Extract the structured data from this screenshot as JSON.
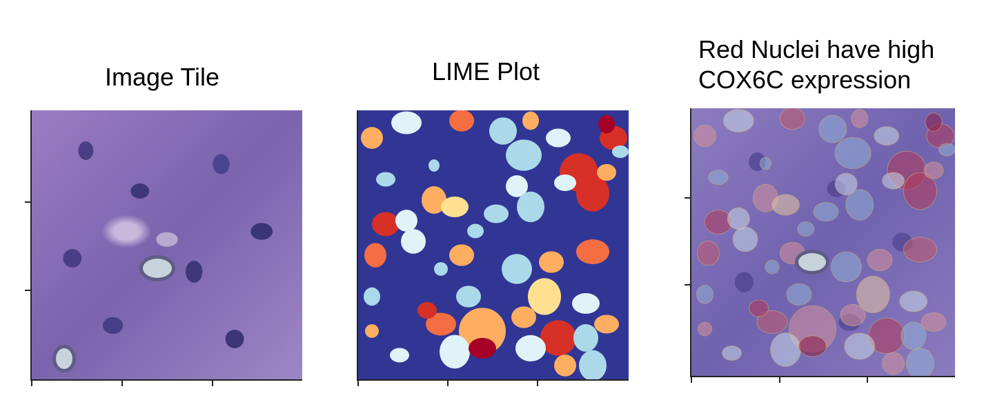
{
  "panels": [
    {
      "title": "Image Tile"
    },
    {
      "title": "LIME Plot"
    },
    {
      "title_line1": "Red Nuclei have high",
      "title_line2": "COX6C expression"
    }
  ]
}
